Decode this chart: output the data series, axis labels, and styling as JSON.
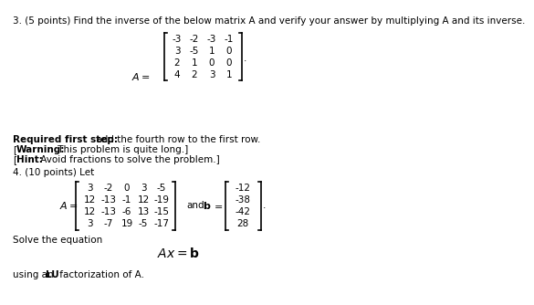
{
  "title3": "3. (5 points) Find the inverse of the below matrix A and verify your answer by multiplying A and its inverse.",
  "matrix_A": [
    [
      "-3",
      "-2",
      "-3",
      "-1"
    ],
    [
      "3",
      "-5",
      "1",
      "0"
    ],
    [
      "2",
      "1",
      "0",
      "0"
    ],
    [
      "4",
      "2",
      "3",
      "1"
    ]
  ],
  "matrix_B": [
    [
      "3",
      "-2",
      "0",
      "3",
      "-5"
    ],
    [
      "12",
      "-13",
      "-1",
      "12",
      "-19"
    ],
    [
      "12",
      "-13",
      "-6",
      "13",
      "-15"
    ],
    [
      "3",
      "-7",
      "19",
      "-5",
      "-17"
    ]
  ],
  "vector_b": [
    "-12",
    "-38",
    "-42",
    "28"
  ],
  "bg_color": "#ffffff",
  "text_color": "#000000"
}
